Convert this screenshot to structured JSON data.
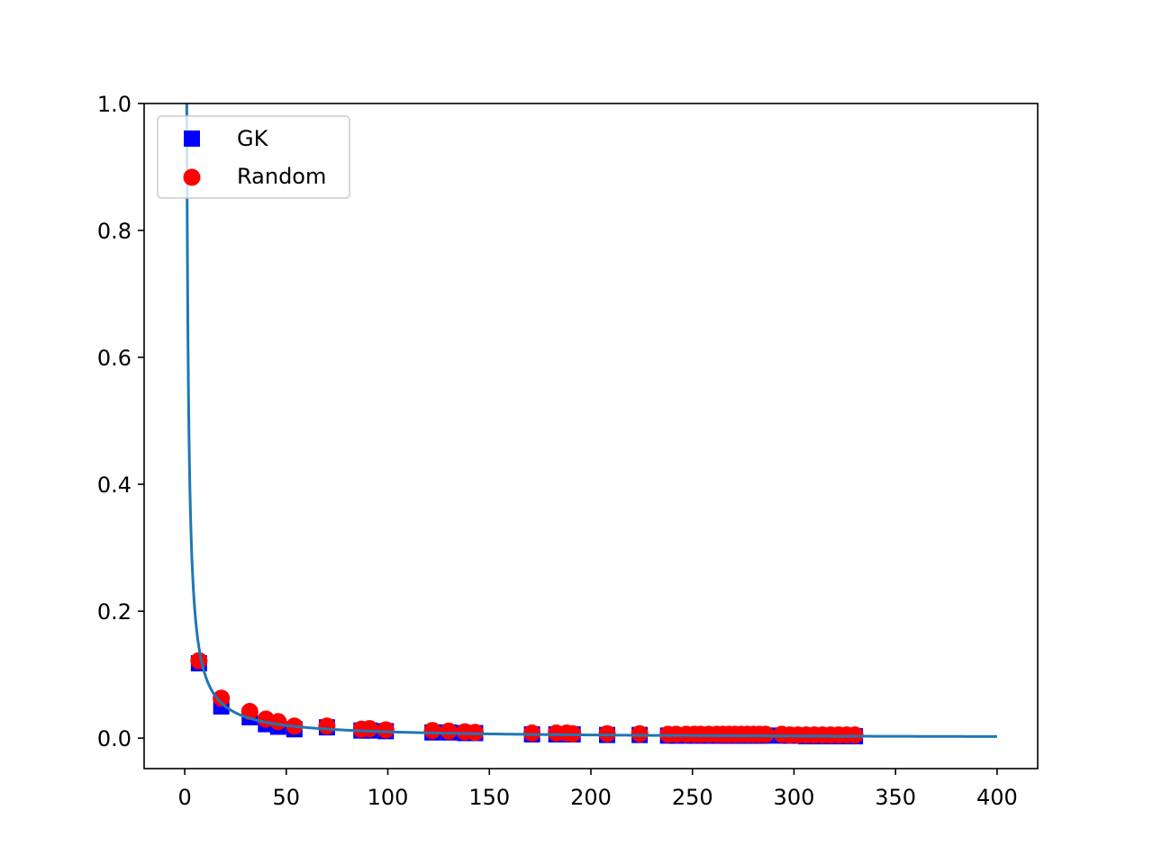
{
  "chart_data": {
    "type": "scatter",
    "title": "",
    "xlabel": "",
    "ylabel": "",
    "xlim": [
      -20,
      420
    ],
    "ylim": [
      -0.048,
      1.0
    ],
    "xticks": [
      0,
      50,
      100,
      150,
      200,
      250,
      300,
      350,
      400
    ],
    "yticks": [
      0.0,
      0.2,
      0.4,
      0.6,
      0.8,
      1.0
    ],
    "xtick_labels": [
      "0",
      "50",
      "100",
      "150",
      "200",
      "250",
      "300",
      "350",
      "400"
    ],
    "ytick_labels": [
      "0.0",
      "0.2",
      "0.4",
      "0.6",
      "0.8",
      "1.0"
    ],
    "grid": false,
    "legend_position": "upper-left",
    "series": [
      {
        "name": "GK",
        "kind": "scatter",
        "marker": "square",
        "color": "#0000ff",
        "points": [
          [
            7,
            0.118
          ],
          [
            18,
            0.05
          ],
          [
            32,
            0.033
          ],
          [
            40,
            0.022
          ],
          [
            46,
            0.018
          ],
          [
            54,
            0.014
          ],
          [
            70,
            0.017
          ],
          [
            87,
            0.012
          ],
          [
            91,
            0.012
          ],
          [
            99,
            0.011
          ],
          [
            122,
            0.009
          ],
          [
            130,
            0.009
          ],
          [
            138,
            0.008
          ],
          [
            143,
            0.008
          ],
          [
            171,
            0.006
          ],
          [
            183,
            0.006
          ],
          [
            188,
            0.006
          ],
          [
            191,
            0.006
          ],
          [
            208,
            0.005
          ],
          [
            224,
            0.005
          ],
          [
            238,
            0.004
          ],
          [
            242,
            0.004
          ],
          [
            247,
            0.004
          ],
          [
            251,
            0.004
          ],
          [
            254,
            0.004
          ],
          [
            258,
            0.004
          ],
          [
            262,
            0.004
          ],
          [
            265,
            0.004
          ],
          [
            268,
            0.004
          ],
          [
            271,
            0.004
          ],
          [
            274,
            0.004
          ],
          [
            277,
            0.004
          ],
          [
            280,
            0.004
          ],
          [
            283,
            0.004
          ],
          [
            286,
            0.004
          ],
          [
            294,
            0.004
          ],
          [
            298,
            0.004
          ],
          [
            302,
            0.004
          ],
          [
            306,
            0.003
          ],
          [
            310,
            0.003
          ],
          [
            314,
            0.003
          ],
          [
            318,
            0.003
          ],
          [
            322,
            0.003
          ],
          [
            326,
            0.003
          ],
          [
            330,
            0.003
          ]
        ]
      },
      {
        "name": "Random",
        "kind": "scatter",
        "marker": "circle",
        "color": "#ff0000",
        "points": [
          [
            7,
            0.122
          ],
          [
            18,
            0.063
          ],
          [
            32,
            0.042
          ],
          [
            40,
            0.03
          ],
          [
            46,
            0.026
          ],
          [
            54,
            0.019
          ],
          [
            70,
            0.019
          ],
          [
            87,
            0.014
          ],
          [
            91,
            0.015
          ],
          [
            99,
            0.013
          ],
          [
            122,
            0.012
          ],
          [
            130,
            0.011
          ],
          [
            138,
            0.01
          ],
          [
            143,
            0.009
          ],
          [
            171,
            0.008
          ],
          [
            183,
            0.008
          ],
          [
            188,
            0.008
          ],
          [
            191,
            0.007
          ],
          [
            208,
            0.007
          ],
          [
            224,
            0.007
          ],
          [
            238,
            0.006
          ],
          [
            242,
            0.006
          ],
          [
            247,
            0.006
          ],
          [
            251,
            0.006
          ],
          [
            254,
            0.006
          ],
          [
            258,
            0.006
          ],
          [
            262,
            0.006
          ],
          [
            265,
            0.006
          ],
          [
            268,
            0.006
          ],
          [
            271,
            0.006
          ],
          [
            274,
            0.006
          ],
          [
            277,
            0.006
          ],
          [
            280,
            0.006
          ],
          [
            283,
            0.006
          ],
          [
            286,
            0.006
          ],
          [
            294,
            0.006
          ],
          [
            298,
            0.005
          ],
          [
            302,
            0.005
          ],
          [
            306,
            0.005
          ],
          [
            310,
            0.005
          ],
          [
            314,
            0.005
          ],
          [
            318,
            0.005
          ],
          [
            322,
            0.005
          ],
          [
            326,
            0.005
          ],
          [
            330,
            0.005
          ]
        ]
      },
      {
        "kind": "line",
        "color": "#1f77b4",
        "curve": "y = 1 / x",
        "x_range": [
          1,
          400
        ]
      }
    ]
  }
}
